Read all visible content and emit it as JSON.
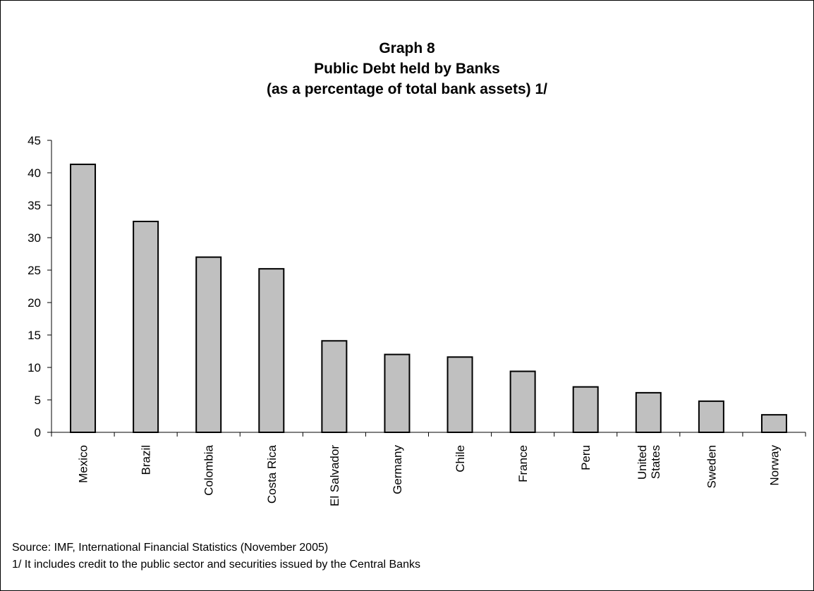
{
  "title": {
    "line1": "Graph 8",
    "line2": "Public Debt held by Banks",
    "line3": "(as a percentage of total bank assets) 1/"
  },
  "notes": {
    "source": "Source: IMF, International Financial Statistics (November 2005)",
    "footnote": "1/ It includes credit to the public sector and securities issued by the Central Banks"
  },
  "colors": {
    "bar_fill": "#c0c0c0",
    "bar_stroke": "#000000",
    "axis": "#000000"
  },
  "chart_data": {
    "type": "bar",
    "title": "Graph 8 Public Debt held by Banks (as a percentage of total bank assets) 1/",
    "categories": [
      [
        "Mexico"
      ],
      [
        "Brazil"
      ],
      [
        "Colombia"
      ],
      [
        "Costa Rica"
      ],
      [
        "El Salvador"
      ],
      [
        "Germany"
      ],
      [
        "Chile"
      ],
      [
        "France"
      ],
      [
        "Peru"
      ],
      [
        "United",
        "States"
      ],
      [
        "Sweden"
      ],
      [
        "Norway"
      ]
    ],
    "values": [
      41.3,
      32.5,
      27.0,
      25.2,
      14.1,
      12.0,
      11.6,
      9.4,
      7.0,
      6.1,
      4.8,
      2.7
    ],
    "ylim": [
      0,
      45
    ],
    "yticks": [
      0,
      5,
      10,
      15,
      20,
      25,
      30,
      35,
      40,
      45
    ],
    "xlabel": "",
    "ylabel": "",
    "grid": false,
    "legend": "none"
  }
}
